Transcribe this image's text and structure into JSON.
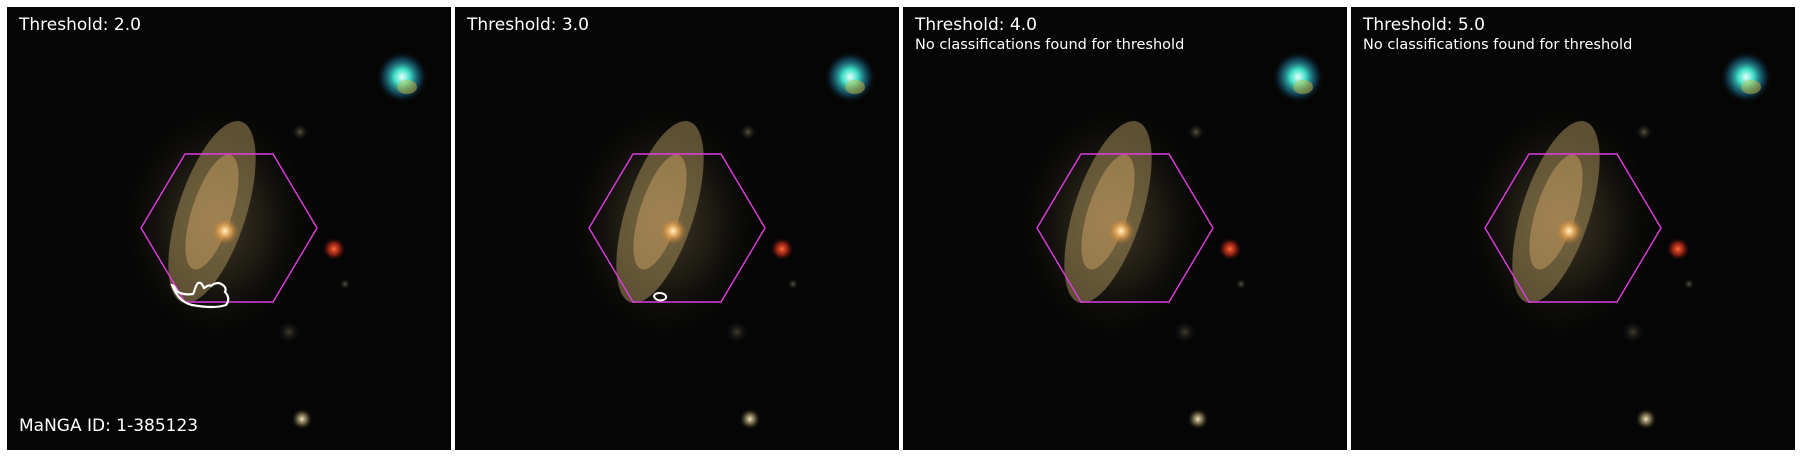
{
  "figure": {
    "manga_id_label": "MaNGA ID: 1-385123",
    "panels": [
      {
        "title": "Threshold: 2.0",
        "note": ""
      },
      {
        "title": "Threshold: 3.0",
        "note": ""
      },
      {
        "title": "Threshold: 4.0",
        "note": "No classifications found for threshold"
      },
      {
        "title": "Threshold: 5.0",
        "note": "No classifications found for threshold"
      }
    ]
  },
  "colors": {
    "hexagon": "#e03ce0",
    "contour": "#ffffff",
    "text": "#ffffff"
  }
}
